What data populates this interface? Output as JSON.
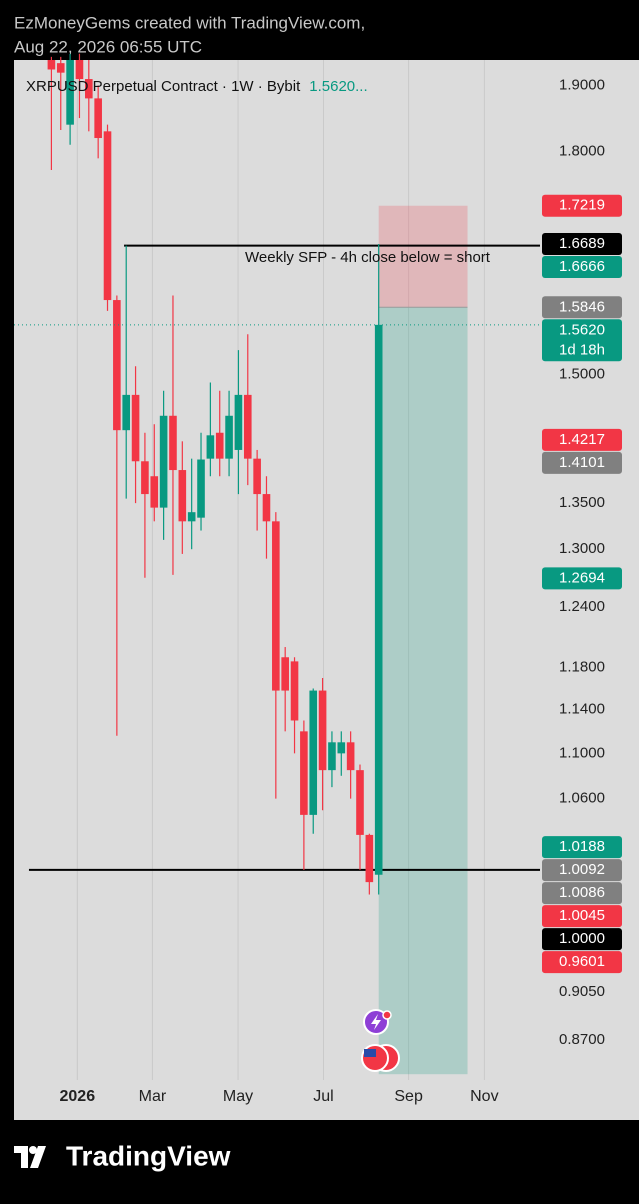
{
  "header": {
    "line1": "EzMoneyGems created with TradingView.com,",
    "line2": "Aug 22, 2026 06:55 UTC"
  },
  "chart_data": {
    "type": "candlestick",
    "title": "XRPUSD Perpetual Contract · 1W · Bybit",
    "title_price": "1.5620...",
    "log_scale": true,
    "grid": "x",
    "ylim": [
      0.842,
      1.94
    ],
    "xlim": [
      -4,
      52.25
    ],
    "yticks": [
      {
        "value": 1.9,
        "label": "1.9000"
      },
      {
        "value": 1.8,
        "label": "1.8000"
      },
      {
        "value": 1.5,
        "label": "1.5000"
      },
      {
        "value": 1.35,
        "label": "1.3500"
      },
      {
        "value": 1.3,
        "label": "1.3000"
      },
      {
        "value": 1.24,
        "label": "1.2400"
      },
      {
        "value": 1.18,
        "label": "1.1800"
      },
      {
        "value": 1.14,
        "label": "1.1400"
      },
      {
        "value": 1.1,
        "label": "1.1000"
      },
      {
        "value": 1.06,
        "label": "1.0600"
      },
      {
        "value": 0.905,
        "label": "0.9050"
      },
      {
        "value": 0.87,
        "label": "0.8700"
      }
    ],
    "xticks": [
      {
        "value": 2.77,
        "label": "2026"
      },
      {
        "value": 10.8,
        "label": "Mar"
      },
      {
        "value": 19.96,
        "label": "May"
      },
      {
        "value": 29.1,
        "label": "Jul"
      },
      {
        "value": 38.2,
        "label": "Sep"
      },
      {
        "value": 46.3,
        "label": "Nov"
      }
    ],
    "up_color": "#089981",
    "down_color": "#f23645",
    "open": [
      1.94,
      1.935,
      1.84,
      1.94,
      1.91,
      1.88,
      1.83,
      1.594,
      1.433,
      1.475,
      1.397,
      1.38,
      1.345,
      1.45,
      1.387,
      1.33,
      1.334,
      1.4,
      1.43,
      1.4,
      1.41,
      1.475,
      1.4,
      1.36,
      1.33,
      1.19,
      1.186,
      1.12,
      1.046,
      1.158,
      1.085,
      1.1,
      1.11,
      1.085,
      1.029,
      0.996
    ],
    "high": [
      1.945,
      1.945,
      1.95,
      1.95,
      1.94,
      1.9,
      1.84,
      1.6,
      1.6666,
      1.51,
      1.43,
      1.44,
      1.48,
      1.6,
      1.42,
      1.4,
      1.43,
      1.49,
      1.48,
      1.48,
      1.53,
      1.55,
      1.41,
      1.38,
      1.34,
      1.2,
      1.19,
      1.13,
      1.16,
      1.17,
      1.12,
      1.12,
      1.12,
      1.09,
      1.03,
      1.6689
    ],
    "low": [
      1.773,
      1.832,
      1.81,
      1.85,
      1.83,
      1.79,
      1.58,
      1.116,
      1.355,
      1.35,
      1.27,
      1.33,
      1.31,
      1.273,
      1.295,
      1.3,
      1.32,
      1.38,
      1.38,
      1.38,
      1.36,
      1.37,
      1.32,
      1.29,
      1.06,
      1.12,
      1.1,
      1.0,
      1.03,
      1.05,
      1.07,
      1.08,
      1.06,
      1.0,
      0.98,
      0.98
    ],
    "close": [
      1.925,
      1.92,
      1.94,
      1.91,
      1.88,
      1.82,
      1.594,
      1.433,
      1.475,
      1.397,
      1.36,
      1.345,
      1.45,
      1.387,
      1.33,
      1.34,
      1.399,
      1.427,
      1.4,
      1.45,
      1.475,
      1.4,
      1.36,
      1.33,
      1.158,
      1.158,
      1.13,
      1.046,
      1.158,
      1.085,
      1.11,
      1.11,
      1.085,
      1.029,
      0.99,
      1.562
    ],
    "hlines": [
      {
        "value": 1.6666,
        "x_start": 7.77,
        "color": "#000000"
      },
      {
        "value": {
          "value": 1,
          "label": "1.0000"
        },
        "x_start": -2.4,
        "color": "#000000"
      }
    ],
    "position": {
      "entry": 1.5846,
      "stop": 1.7219,
      "target": 0.846,
      "x_start": 35,
      "x_end": 44.5
    },
    "annotation": "Weekly SFP - 4h close below = short",
    "price_tags": [
      {
        "value": 1.7219,
        "color": "#f23645"
      },
      {
        "value": 1.6689,
        "color": "#000000"
      },
      {
        "value": 1.6666,
        "color": "#089981"
      },
      {
        "value": 1.5846,
        "color": "#808080"
      },
      {
        "value": {
          "value": 1.562,
          "label": "1.5620"
        },
        "color": "#089981",
        "countdown": "1d 18h"
      },
      {
        "value": 1.4217,
        "color": "#f23645"
      },
      {
        "value": 1.4101,
        "color": "#808080"
      },
      {
        "value": 1.2694,
        "color": "#089981"
      },
      {
        "value": 1.0188,
        "color": "#089981"
      },
      {
        "value": 1.0092,
        "color": "#808080"
      },
      {
        "value": 1.0086,
        "color": "#808080"
      },
      {
        "value": 1.0045,
        "color": "#f23645"
      },
      {
        "value": {
          "value": 1,
          "label": "1.0000"
        },
        "color": "#000000"
      },
      {
        "value": 0.9601,
        "color": "#f23645"
      }
    ]
  },
  "footer": {
    "brand": "TradingView"
  }
}
